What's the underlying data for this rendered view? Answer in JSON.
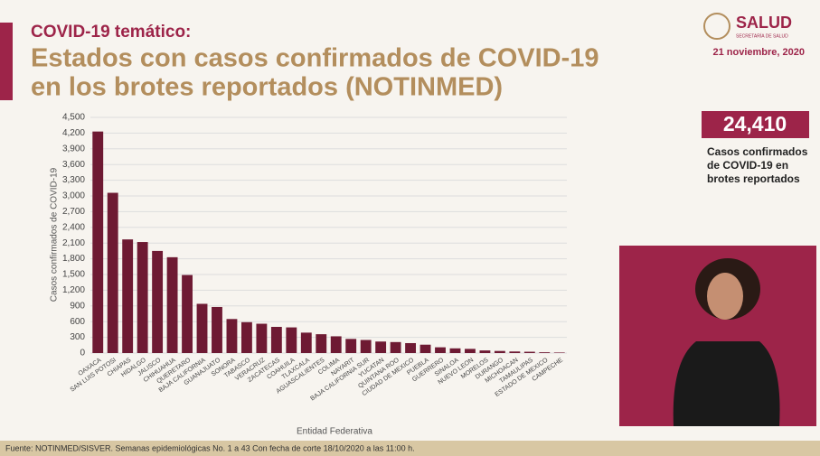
{
  "header": {
    "kicker": "COVID-19 temático:",
    "logo": "SALUD",
    "logo_sub": "SECRETARÍA DE SALUD",
    "date": "21 noviembre, 2020"
  },
  "kpi": {
    "value": "24,410",
    "caption": [
      "Casos confirmados",
      "de COVID-19 en",
      "brotes reportados"
    ]
  },
  "footer": "Fuente: NOTINMED/SISVER. Semanas epidemiológicas No. 1 a 43  Con fecha de corte 18/10/2020 a las 11:00 h.",
  "chart_data": {
    "type": "bar",
    "title": [
      "Estados con casos confirmados de COVID-19",
      "en los brotes reportados (NOTINMED)"
    ],
    "x_label": "Entidad Federativa",
    "y_label": "Casos confirmados de COVID-19",
    "color": "#6e1a33",
    "grid": true,
    "categories": [
      "OAXACA",
      "SAN LUIS POTOSI",
      "CHIAPAS",
      "HIDALGO",
      "JALISCO",
      "CHIHUAHUA",
      "QUERETARO",
      "BAJA CALIFORNIA",
      "GUANAJUATO",
      "SONORA",
      "TABASCO",
      "VERACRUZ",
      "ZACATECAS",
      "COAHUILA",
      "TLAXCALA",
      "AGUASCALIENTES",
      "COLIMA",
      "NAYARIT",
      "BAJA CALIFORNIA SUR",
      "YUCATAN",
      "QUINTANA ROO",
      "CIUDAD DE MEXICO",
      "PUEBLA",
      "GUERRERO",
      "SINALOA",
      "NUEVO LEON",
      "MORELOS",
      "DURANGO",
      "MICHOACAN",
      "TAMAULIPAS",
      "ESTADO DE MEXICO",
      "CAMPECHE"
    ],
    "values": [
      4230,
      3060,
      2170,
      2120,
      1950,
      1830,
      1490,
      940,
      880,
      650,
      590,
      560,
      500,
      490,
      390,
      360,
      320,
      270,
      250,
      220,
      210,
      190,
      160,
      110,
      90,
      80,
      50,
      40,
      30,
      25,
      15,
      10
    ],
    "ylim": [
      0,
      4500
    ],
    "yticks": [
      0,
      300,
      600,
      900,
      {
        "value": 1200,
        "label": "1,200"
      },
      {
        "value": 1500,
        "label": "1,500"
      },
      {
        "value": 1800,
        "label": "1,800"
      },
      {
        "value": 2100,
        "label": "2,100"
      },
      {
        "value": 2400,
        "label": "2,400"
      },
      {
        "value": 2700,
        "label": "2,700"
      },
      {
        "value": 3000,
        "label": "3,000"
      },
      {
        "value": 3300,
        "label": "3,300"
      },
      {
        "value": 3600,
        "label": "3,600"
      },
      {
        "value": 3900,
        "label": "3,900"
      },
      {
        "value": 4200,
        "label": "4,200"
      },
      {
        "value": 4500,
        "label": "4,500"
      }
    ]
  }
}
